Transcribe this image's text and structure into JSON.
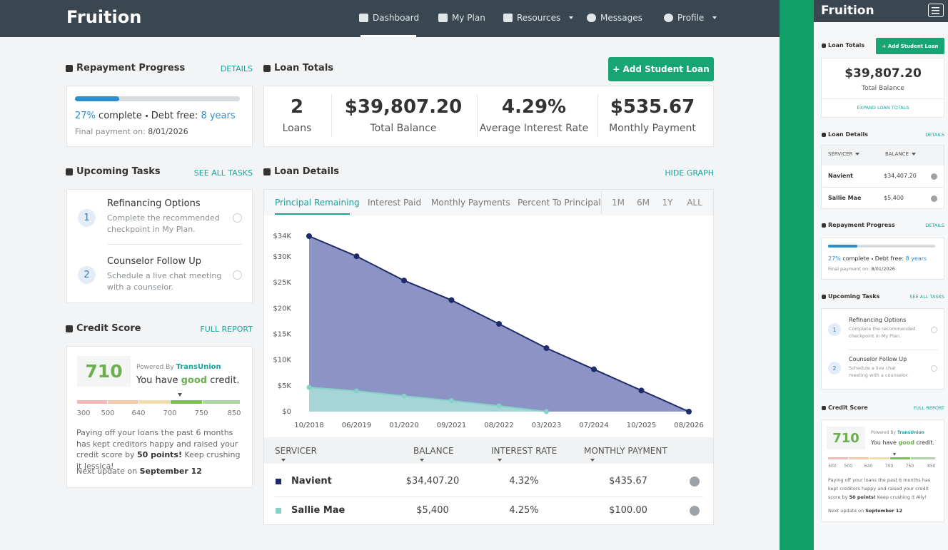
{
  "nav": {
    "brand": "Fruition",
    "items": [
      "Dashboard",
      "My Plan",
      "Resources",
      "Messages",
      "Profile"
    ]
  },
  "repayment": {
    "title": "Repayment Progress",
    "link": "DETAILS",
    "percent": 27,
    "percent_label": "27%",
    "complete": "complete",
    "debt_free_label": "Debt free:",
    "debt_free": "8 years",
    "final_label": "Final payment on:",
    "final_date": "8/01/2026"
  },
  "loan_totals": {
    "title": "Loan Totals",
    "button": "+ Add Student Loan",
    "stats": [
      {
        "value": "2",
        "label": "Loans"
      },
      {
        "value": "$39,807.20",
        "label": "Total Balance"
      },
      {
        "value": "4.29%",
        "label": "Average Interest Rate"
      },
      {
        "value": "$535.67",
        "label": "Monthly Payment"
      }
    ]
  },
  "tasks": {
    "title": "Upcoming Tasks",
    "link": "SEE ALL TASKS",
    "items": [
      {
        "number": 1,
        "title": "Refinancing Options",
        "desc": "Complete the recommended checkpoint in My Plan."
      },
      {
        "number": 2,
        "title": "Counselor Follow Up",
        "desc": "Schedule a live chat meeting with a counselor."
      }
    ]
  },
  "credit": {
    "title": "Credit Score",
    "link": "FULL REPORT",
    "score": 710,
    "powered": "Powered By",
    "brand": "TransUnion",
    "you_have": "You have",
    "rating": "good",
    "credit_word": "credit.",
    "scale": [
      300,
      500,
      640,
      700,
      750,
      850
    ],
    "message_start": "Paying off your loans the past 6 months has kept creditors happy and raised your credit score by",
    "points": "50 points!",
    "message_end": "Keep crushing it Jessica!",
    "next_label": "Next update on",
    "next_date": "September 12"
  },
  "loan_details": {
    "title": "Loan Details",
    "link": "HIDE GRAPH",
    "tabs": [
      "Principal Remaining",
      "Interest Paid",
      "Monthly Payments",
      "Percent To Principal"
    ],
    "ranges": [
      "1M",
      "6M",
      "1Y",
      "ALL"
    ],
    "chart": {
      "type": "area",
      "categories": [
        "10/2018",
        "06/2019",
        "01/2020",
        "09/2021",
        "08/2022",
        "03/2023",
        "07/2024",
        "10/2025",
        "08/2026"
      ],
      "series": [
        {
          "color": "#1f2a6b",
          "fill": "#8088bf",
          "values": [
            34000,
            30100,
            25400,
            21600,
            17000,
            12300,
            8200,
            4100,
            0
          ]
        },
        {
          "color": "#86d1c9",
          "fill": "#a9dcd8",
          "values": [
            4700,
            4000,
            3000,
            2100,
            1100,
            0,
            null,
            null,
            null
          ]
        }
      ],
      "ylim": [
        0,
        34000
      ],
      "yticks": [
        {
          "value": 0,
          "label": "$0"
        },
        {
          "value": 5000,
          "label": "$5K"
        },
        {
          "value": 10000,
          "label": "$10K"
        },
        {
          "value": 15000,
          "label": "$15K"
        },
        {
          "value": 20000,
          "label": "$20K"
        },
        {
          "value": 25000,
          "label": "$25K"
        },
        {
          "value": 30000,
          "label": "$30K"
        },
        {
          "value": 34000,
          "label": "$34K"
        }
      ]
    },
    "columns": [
      "SERVICER",
      "BALANCE",
      "INTEREST RATE",
      "MONTHLY PAYMENT"
    ],
    "rows": [
      [
        "Navient",
        "$34,407.20",
        "4.32%",
        "$435.67"
      ],
      [
        "Sallie Mae",
        "$5,400",
        "4.25%",
        "$100.00"
      ]
    ],
    "row_colors": [
      "#1f2a6b",
      "#86d1c9"
    ]
  },
  "mobile": {
    "expand": "EXPAND LOAN TOTALS",
    "details_link": "DETAILS",
    "message_end": "Keep crushing it Ally!"
  }
}
